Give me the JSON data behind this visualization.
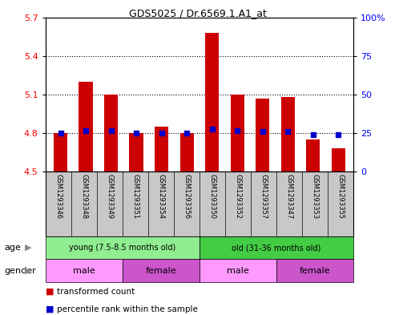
{
  "title": "GDS5025 / Dr.6569.1.A1_at",
  "samples": [
    "GSM1293346",
    "GSM1293348",
    "GSM1293349",
    "GSM1293351",
    "GSM1293354",
    "GSM1293356",
    "GSM1293350",
    "GSM1293352",
    "GSM1293357",
    "GSM1293347",
    "GSM1293353",
    "GSM1293355"
  ],
  "red_values": [
    4.8,
    5.2,
    5.1,
    4.8,
    4.85,
    4.8,
    5.58,
    5.1,
    5.07,
    5.08,
    4.75,
    4.68
  ],
  "blue_values": [
    4.8,
    4.82,
    4.82,
    4.8,
    4.8,
    4.8,
    4.83,
    4.82,
    4.81,
    4.81,
    4.79,
    4.79
  ],
  "ylim_left": [
    4.5,
    5.7
  ],
  "ylim_right": [
    0,
    100
  ],
  "yticks_left": [
    4.5,
    4.8,
    5.1,
    5.4,
    5.7
  ],
  "yticks_right": [
    0,
    25,
    50,
    75,
    100
  ],
  "age_groups": [
    {
      "label": "young (7.5-8.5 months old)",
      "start": 0,
      "end": 6,
      "color": "#90EE90"
    },
    {
      "label": "old (31-36 months old)",
      "start": 6,
      "end": 12,
      "color": "#44CC44"
    }
  ],
  "gender_groups": [
    {
      "label": "male",
      "start": 0,
      "end": 3,
      "color": "#FF99FF"
    },
    {
      "label": "female",
      "start": 3,
      "end": 6,
      "color": "#CC55CC"
    },
    {
      "label": "male",
      "start": 6,
      "end": 9,
      "color": "#FF99FF"
    },
    {
      "label": "female",
      "start": 9,
      "end": 12,
      "color": "#CC55CC"
    }
  ],
  "bar_color": "#CC0000",
  "blue_color": "#0000CC",
  "base_value": 4.5,
  "grid_yticks": [
    4.8,
    5.1,
    5.4
  ],
  "legend_red": "transformed count",
  "legend_blue": "percentile rank within the sample",
  "age_label": "age",
  "gender_label": "gender",
  "sample_bg": "#C8C8C8",
  "right_tick_labels": [
    "0",
    "25",
    "50",
    "75",
    "100%"
  ]
}
